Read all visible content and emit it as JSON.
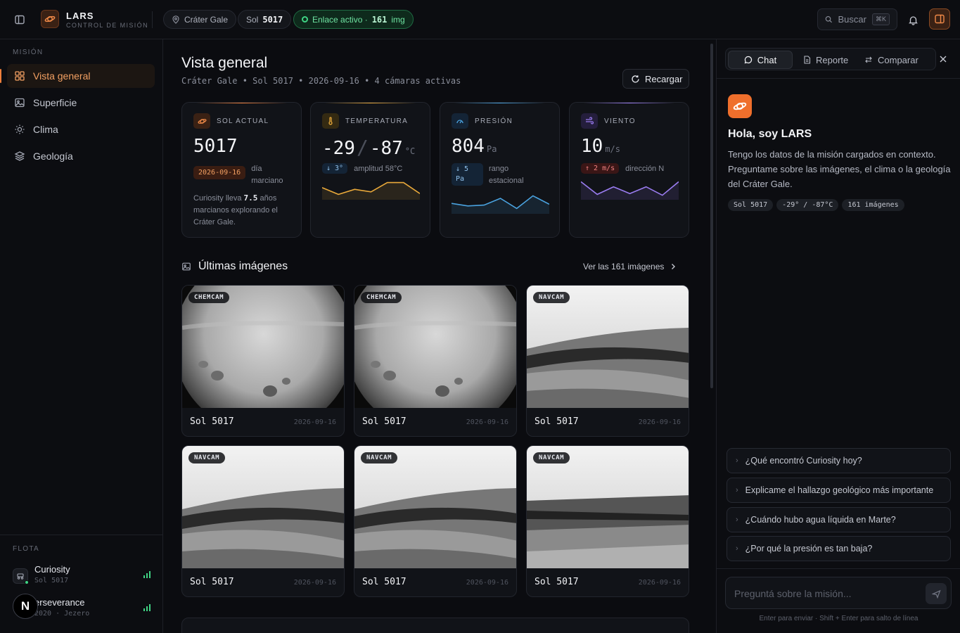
{
  "topbar": {
    "brand_name": "LARS",
    "brand_sub": "CONTROL DE MISIÓN",
    "location": "Cráter Gale",
    "sol_label": "Sol",
    "sol_value": "5017",
    "link_label": "Enlace activo ·",
    "link_count": "161",
    "link_unit": "img",
    "search_placeholder": "Buscar",
    "search_shortcut": "⌘K"
  },
  "sidebar": {
    "section_mission": "MISIÓN",
    "items": [
      {
        "label": "Vista general",
        "icon": "grid-icon",
        "active": true
      },
      {
        "label": "Superficie",
        "icon": "image-icon"
      },
      {
        "label": "Clima",
        "icon": "sun-icon"
      },
      {
        "label": "Geología",
        "icon": "layers-icon"
      }
    ],
    "section_fleet": "FLOTA",
    "fleet": [
      {
        "name": "Curiosity",
        "sub": "Sol 5017"
      },
      {
        "name": "erseverance",
        "sub": "2020 · Jezero"
      }
    ],
    "badge": "N"
  },
  "main": {
    "title": "Vista general",
    "subtitle": "Cráter Gale • Sol 5017 • 2026-09-16 • 4 cámaras activas",
    "reload": "Recargar",
    "cards": {
      "sol": {
        "head": "SOL ACTUAL",
        "value": "5017",
        "chip": "2026-09-16",
        "chip_note": "día marciano",
        "desc_a": "Curiosity lleva",
        "desc_years": "7.5",
        "desc_b": "años marcianos explorando el Cráter Gale."
      },
      "temp": {
        "head": "TEMPERATURA",
        "max": "-29",
        "min": "-87",
        "unit": "°C",
        "chip": "↓ 3°",
        "note": "amplitud 58°C",
        "spark": [
          0.45,
          0.85,
          0.55,
          0.7,
          0.15,
          0.15,
          0.8
        ],
        "color": "#e9a93a"
      },
      "pres": {
        "head": "PRESIÓN",
        "value": "804",
        "unit": "Pa",
        "chip": "↓ 5 Pa",
        "note": "rango estacional",
        "spark": [
          0.55,
          0.7,
          0.65,
          0.25,
          0.85,
          0.1,
          0.6
        ],
        "color": "#4aa3e0"
      },
      "wind": {
        "head": "VIENTO",
        "value": "10",
        "unit": "m/s",
        "chip": "↑ 2 m/s",
        "note": "dirección N",
        "spark": [
          0.1,
          0.85,
          0.4,
          0.8,
          0.4,
          0.9,
          0.1
        ],
        "color": "#9a7cf0"
      }
    },
    "images_title": "Últimas imágenes",
    "see_all": "Ver las 161 imágenes",
    "images": [
      {
        "cam": "CHEMCAM",
        "sol": "Sol 5017",
        "date": "2026-09-16",
        "kind": "chemcam"
      },
      {
        "cam": "CHEMCAM",
        "sol": "Sol 5017",
        "date": "2026-09-16",
        "kind": "chemcam"
      },
      {
        "cam": "NAVCAM",
        "sol": "Sol 5017",
        "date": "2026-09-16",
        "kind": "navcam"
      },
      {
        "cam": "NAVCAM",
        "sol": "Sol 5017",
        "date": "2026-09-16",
        "kind": "navcam"
      },
      {
        "cam": "NAVCAM",
        "sol": "Sol 5017",
        "date": "2026-09-16",
        "kind": "navcam"
      },
      {
        "cam": "NAVCAM",
        "sol": "Sol 5017",
        "date": "2026-09-16",
        "kind": "navcam2"
      }
    ]
  },
  "chat": {
    "tabs": [
      "Chat",
      "Reporte",
      "Comparar"
    ],
    "greeting": "Hola, soy LARS",
    "intro": "Tengo los datos de la misión cargados en contexto. Preguntame sobre las imágenes, el clima o la geología del Cráter Gale.",
    "chips": [
      "Sol 5017",
      "-29° / -87°C",
      "161 imágenes"
    ],
    "suggestions": [
      "¿Qué encontró Curiosity hoy?",
      "Explicame el hallazgo geológico más importante",
      "¿Cuándo hubo agua líquida en Marte?",
      "¿Por qué la presión es tan baja?"
    ],
    "input_placeholder": "Preguntá sobre la misión...",
    "hint": "Enter para enviar · Shift + Enter para salto de línea"
  }
}
